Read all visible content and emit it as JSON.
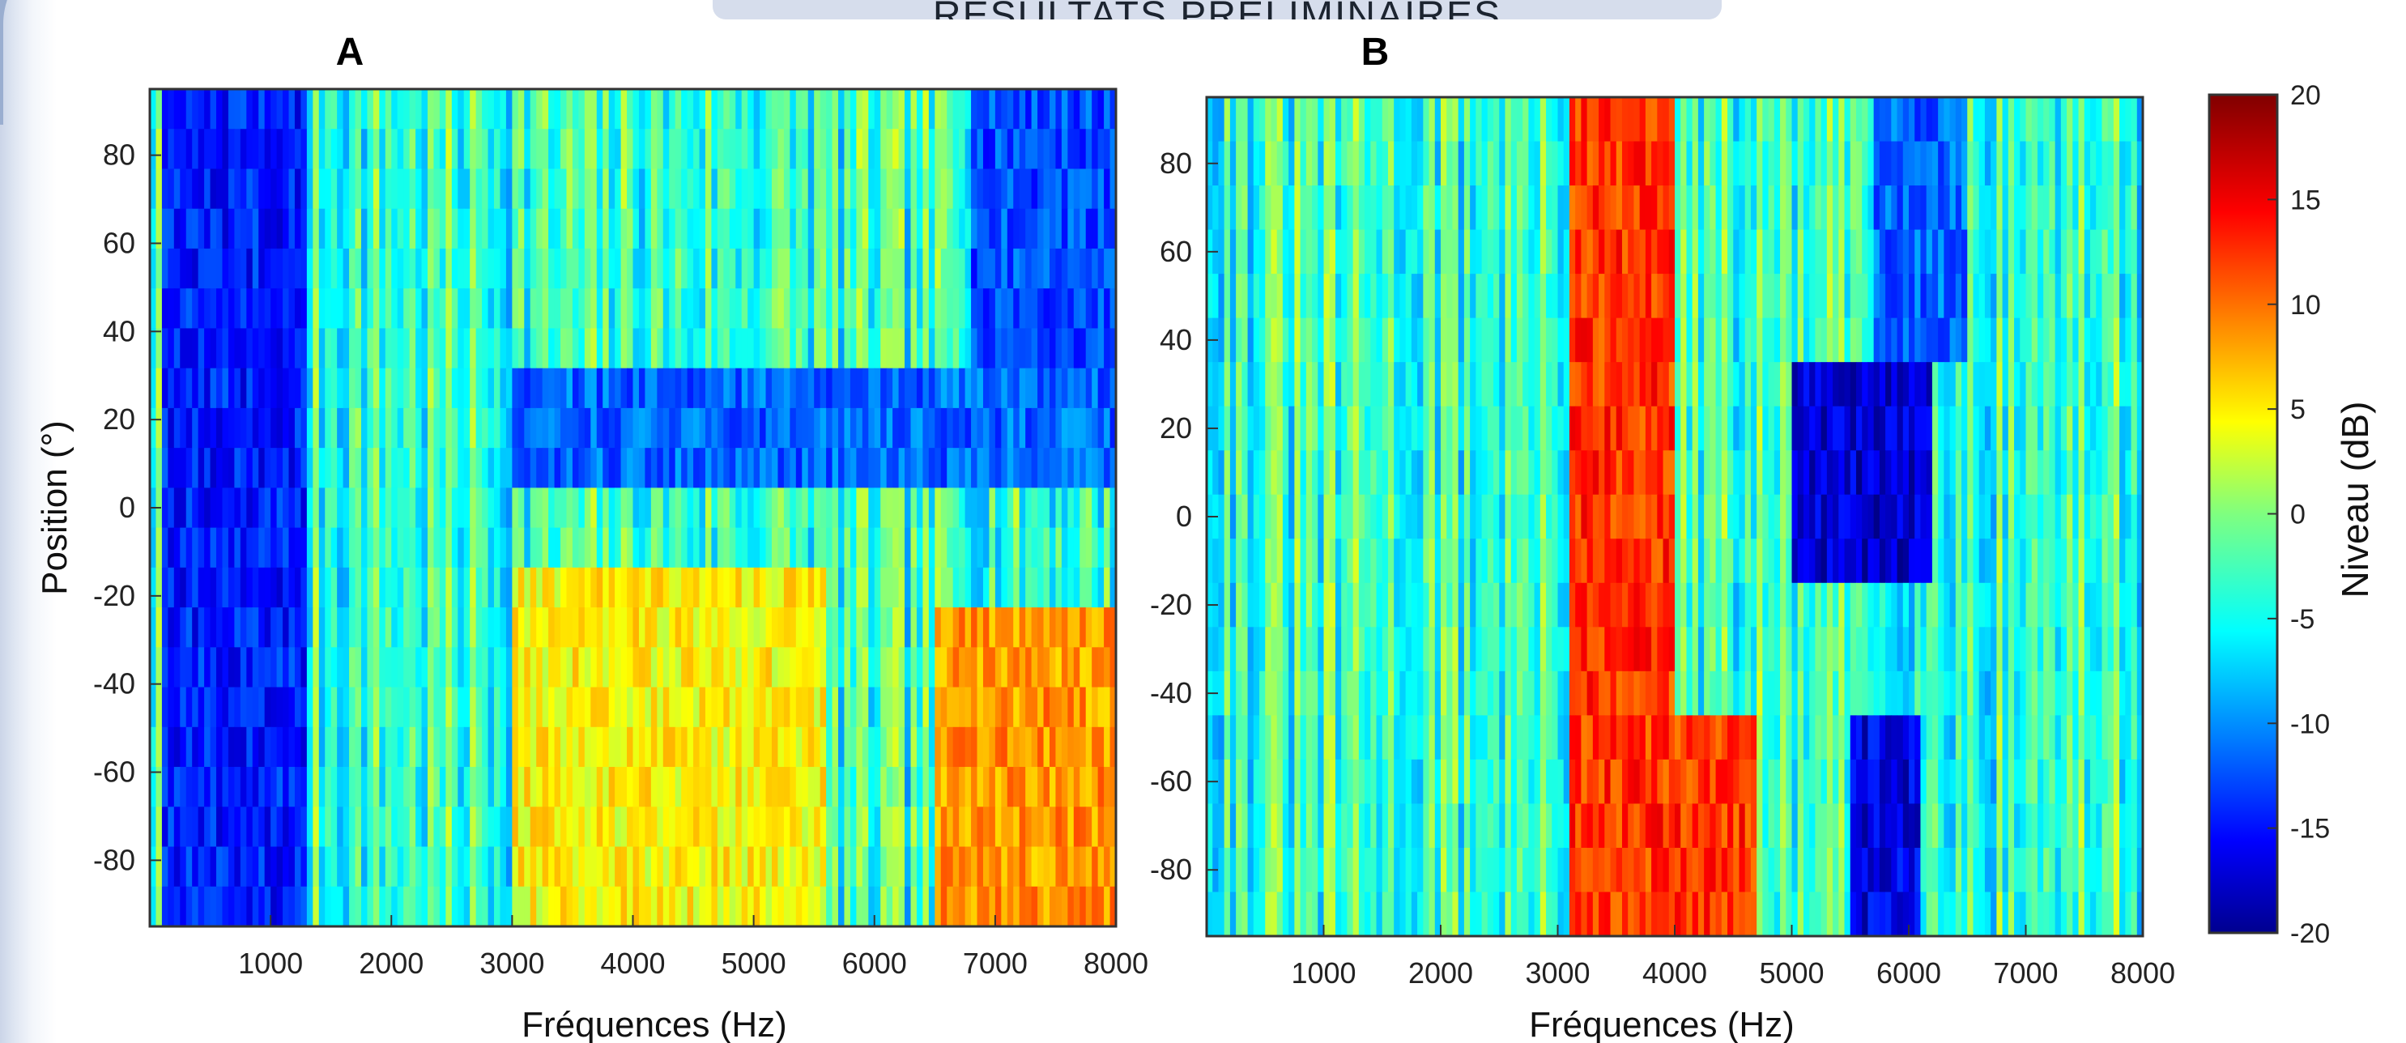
{
  "page": {
    "title": "RESULTATS PRELIMINAIRES"
  },
  "chart_data": [
    {
      "type": "heatmap",
      "panel_label": "A",
      "xlabel": "Fréquences (Hz)",
      "ylabel": "Position (°)",
      "xlim": [
        0,
        8000
      ],
      "ylim": [
        -95,
        95
      ],
      "xticks": [
        1000,
        2000,
        3000,
        4000,
        5000,
        6000,
        7000,
        8000
      ],
      "yticks": [
        80,
        60,
        40,
        20,
        0,
        -20,
        -40,
        -60,
        -80
      ],
      "rows": 21,
      "columns": 160,
      "colormap": "jet",
      "clim": [
        -20,
        20
      ],
      "features": [
        {
          "description_region": "low-frequency dark stripes",
          "x_range": [
            100,
            1300
          ],
          "y_range": [
            -95,
            95
          ],
          "level_db": -14
        },
        {
          "description_region": "blue band",
          "x_range": [
            3000,
            8000
          ],
          "y_range": [
            5,
            30
          ],
          "level_db": -11
        },
        {
          "description_region": "upper-right blue",
          "x_range": [
            6800,
            8000
          ],
          "y_range": [
            30,
            95
          ],
          "level_db": -12
        },
        {
          "description_region": "warm lower-right",
          "x_range": [
            6500,
            8000
          ],
          "y_range": [
            -95,
            -20
          ],
          "level_db": 9
        },
        {
          "description_region": "warm lower-middle",
          "x_range": [
            3000,
            5600
          ],
          "y_range": [
            -95,
            -10
          ],
          "level_db": 5
        }
      ]
    },
    {
      "type": "heatmap",
      "panel_label": "B",
      "xlabel": "Fréquences (Hz)",
      "ylabel": "",
      "xlim": [
        0,
        8000
      ],
      "ylim": [
        -95,
        95
      ],
      "xticks": [
        1000,
        2000,
        3000,
        4000,
        5000,
        6000,
        7000,
        8000
      ],
      "yticks": [
        80,
        60,
        40,
        20,
        0,
        -20,
        -40,
        -60,
        -80
      ],
      "rows": 19,
      "columns": 160,
      "colormap": "jet",
      "clim": [
        -20,
        20
      ],
      "features": [
        {
          "description_region": "hot vertical band",
          "x_range": [
            3100,
            4000
          ],
          "y_range": [
            -95,
            95
          ],
          "level_db": 13
        },
        {
          "description_region": "hot lower band",
          "x_range": [
            3900,
            4700
          ],
          "y_range": [
            -95,
            -50
          ],
          "level_db": 13
        },
        {
          "description_region": "deep blue centre",
          "x_range": [
            5000,
            6200
          ],
          "y_range": [
            -10,
            30
          ],
          "level_db": -17
        },
        {
          "description_region": "blue lower diagonal",
          "x_range": [
            5500,
            6100
          ],
          "y_range": [
            -95,
            -50
          ],
          "level_db": -16
        },
        {
          "description_region": "blue upper",
          "x_range": [
            5700,
            6500
          ],
          "y_range": [
            40,
            95
          ],
          "level_db": -11
        }
      ]
    }
  ],
  "colorbar": {
    "label": "Niveau (dB)",
    "min": -20,
    "max": 20,
    "ticks": [
      20,
      15,
      10,
      5,
      0,
      -5,
      -10,
      -15,
      -20
    ]
  }
}
